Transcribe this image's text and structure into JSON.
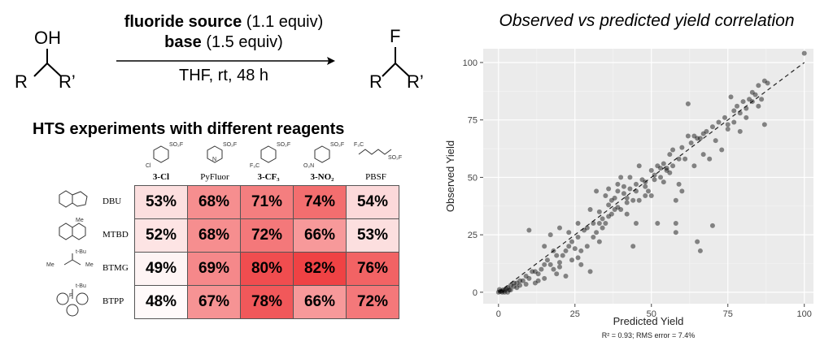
{
  "reaction": {
    "reactant_oh": "OH",
    "reactant_r": "R",
    "reactant_r2": "R’",
    "product_f": "F",
    "product_r": "R",
    "product_r2": "R’",
    "line1_bold": "fluoride source",
    "line1_rest": " (1.1 equiv)",
    "line2_bold": "base",
    "line2_rest": " (1.5 equiv)",
    "line3": "THF, rt, 48 h"
  },
  "hts": {
    "title": "HTS experiments with different reagents",
    "columns": [
      {
        "label": "3-Cl",
        "bold": true,
        "struct_label": "SO₂F / Cl"
      },
      {
        "label": "PyFluor",
        "bold": false,
        "struct_label": "SO₂F / N"
      },
      {
        "label": "3-CF₃",
        "bold": true,
        "struct_label": "SO₂F / F₃C"
      },
      {
        "label": "3-NO₂",
        "bold": true,
        "struct_label": "SO₂F / O₂N"
      },
      {
        "label": "PBSF",
        "bold": false,
        "struct_label": "F₃C…SO₂F"
      }
    ],
    "rows": [
      {
        "label": "DBU",
        "values": [
          "53%",
          "68%",
          "71%",
          "74%",
          "54%"
        ],
        "nums": [
          53,
          68,
          71,
          74,
          54
        ]
      },
      {
        "label": "MTBD",
        "values": [
          "52%",
          "68%",
          "72%",
          "66%",
          "53%"
        ],
        "nums": [
          52,
          68,
          72,
          66,
          53
        ]
      },
      {
        "label": "BTMG",
        "values": [
          "49%",
          "69%",
          "80%",
          "82%",
          "76%"
        ],
        "nums": [
          49,
          69,
          80,
          82,
          76
        ]
      },
      {
        "label": "BTPP",
        "values": [
          "48%",
          "67%",
          "78%",
          "66%",
          "72%"
        ],
        "nums": [
          48,
          67,
          78,
          66,
          72
        ]
      }
    ],
    "colors": {
      "low": "#ffffff",
      "high": "#ef3d3f"
    }
  },
  "chart_data": {
    "type": "scatter",
    "title": "Observed vs predicted yield correlation",
    "xlabel": "Predicted Yield",
    "ylabel": "Observed Yield",
    "xlim": [
      -5,
      103
    ],
    "ylim": [
      -5,
      106
    ],
    "xticks": [
      0,
      25,
      50,
      75,
      100
    ],
    "yticks": [
      0,
      25,
      50,
      75,
      100
    ],
    "grid": true,
    "caption": "R² = 0.93; RMS error = 7.4%",
    "reference_line": "y = x (dashed)",
    "points": [
      [
        0,
        0
      ],
      [
        0.5,
        0.3
      ],
      [
        1,
        0.5
      ],
      [
        1.2,
        0
      ],
      [
        1.5,
        1
      ],
      [
        2,
        0.8
      ],
      [
        0.3,
        1.2
      ],
      [
        2.5,
        1.5
      ],
      [
        3,
        2
      ],
      [
        3.5,
        1
      ],
      [
        4,
        3
      ],
      [
        5,
        2.5
      ],
      [
        6,
        4
      ],
      [
        7,
        3
      ],
      [
        8,
        5
      ],
      [
        9,
        3.5
      ],
      [
        10,
        6
      ],
      [
        11,
        9
      ],
      [
        12,
        4
      ],
      [
        13,
        8
      ],
      [
        14,
        10
      ],
      [
        15,
        6
      ],
      [
        16,
        14
      ],
      [
        17,
        12
      ],
      [
        18,
        18
      ],
      [
        19,
        8
      ],
      [
        20,
        11
      ],
      [
        21,
        16
      ],
      [
        22,
        7
      ],
      [
        23,
        20
      ],
      [
        24,
        22
      ],
      [
        25,
        19
      ],
      [
        26,
        24
      ],
      [
        27,
        12
      ],
      [
        28,
        27
      ],
      [
        29,
        28
      ],
      [
        30,
        9
      ],
      [
        31,
        30
      ],
      [
        32,
        26
      ],
      [
        33,
        35
      ],
      [
        34,
        32
      ],
      [
        35,
        30
      ],
      [
        36,
        38
      ],
      [
        37,
        34
      ],
      [
        38,
        41
      ],
      [
        39,
        44
      ],
      [
        40,
        36
      ],
      [
        41,
        43
      ],
      [
        42,
        39
      ],
      [
        43,
        45
      ],
      [
        44,
        20
      ],
      [
        45,
        47
      ],
      [
        46,
        40
      ],
      [
        47,
        49
      ],
      [
        48,
        48
      ],
      [
        49,
        44
      ],
      [
        50,
        53
      ],
      [
        51,
        51
      ],
      [
        52,
        55
      ],
      [
        53,
        50
      ],
      [
        54,
        56
      ],
      [
        55,
        54
      ],
      [
        56,
        60
      ],
      [
        57,
        62
      ],
      [
        58,
        30
      ],
      [
        59,
        58
      ],
      [
        60,
        63
      ],
      [
        62,
        82
      ],
      [
        63,
        65
      ],
      [
        64,
        68
      ],
      [
        65,
        22
      ],
      [
        66,
        67
      ],
      [
        67,
        69
      ],
      [
        68,
        70
      ],
      [
        70,
        72
      ],
      [
        72,
        74
      ],
      [
        74,
        76
      ],
      [
        75,
        73
      ],
      [
        76,
        85
      ],
      [
        77,
        79
      ],
      [
        78,
        81
      ],
      [
        79,
        78
      ],
      [
        80,
        83
      ],
      [
        81,
        80
      ],
      [
        82,
        84
      ],
      [
        83,
        87
      ],
      [
        84,
        86
      ],
      [
        85,
        90
      ],
      [
        86,
        84
      ],
      [
        87,
        92
      ],
      [
        88,
        91
      ],
      [
        100,
        104
      ],
      [
        32,
        44
      ],
      [
        35,
        42
      ],
      [
        38,
        36
      ],
      [
        40,
        50
      ],
      [
        42,
        34
      ],
      [
        44,
        40
      ],
      [
        46,
        55
      ],
      [
        48,
        42
      ],
      [
        50,
        42
      ],
      [
        52,
        30
      ],
      [
        54,
        48
      ],
      [
        56,
        52
      ],
      [
        58,
        40
      ],
      [
        60,
        44
      ],
      [
        62,
        68
      ],
      [
        45,
        30
      ],
      [
        43,
        50
      ],
      [
        41,
        46
      ],
      [
        39,
        37
      ],
      [
        37,
        40
      ],
      [
        36,
        33
      ],
      [
        34,
        28
      ],
      [
        33,
        22
      ],
      [
        31,
        24
      ],
      [
        29,
        20
      ],
      [
        27,
        18
      ],
      [
        26,
        15
      ],
      [
        24,
        14
      ],
      [
        22,
        18
      ],
      [
        20,
        13
      ],
      [
        19,
        16
      ],
      [
        18,
        10
      ],
      [
        15,
        12
      ],
      [
        13,
        5
      ],
      [
        12,
        9
      ],
      [
        10,
        27
      ],
      [
        9,
        7
      ],
      [
        7,
        5
      ],
      [
        6,
        2
      ],
      [
        5,
        4
      ],
      [
        4,
        1
      ],
      [
        3,
        0
      ],
      [
        2,
        0
      ],
      [
        20,
        28
      ],
      [
        23,
        26
      ],
      [
        26,
        30
      ],
      [
        30,
        36
      ],
      [
        33,
        30
      ],
      [
        36,
        45
      ],
      [
        39,
        47
      ],
      [
        42,
        41
      ],
      [
        45,
        44
      ],
      [
        48,
        46
      ],
      [
        51,
        49
      ],
      [
        53,
        54
      ],
      [
        55,
        53
      ],
      [
        57,
        55
      ],
      [
        59,
        47
      ],
      [
        61,
        58
      ],
      [
        65,
        67
      ],
      [
        67,
        60
      ],
      [
        69,
        58
      ],
      [
        71,
        66
      ],
      [
        73,
        62
      ],
      [
        75,
        71
      ],
      [
        77,
        74
      ],
      [
        79,
        70
      ],
      [
        81,
        76
      ],
      [
        83,
        83
      ],
      [
        85,
        81
      ],
      [
        87,
        73
      ],
      [
        70,
        29
      ],
      [
        66,
        18
      ],
      [
        64,
        55
      ],
      [
        58,
        26
      ],
      [
        15,
        20
      ],
      [
        17,
        25
      ]
    ]
  }
}
